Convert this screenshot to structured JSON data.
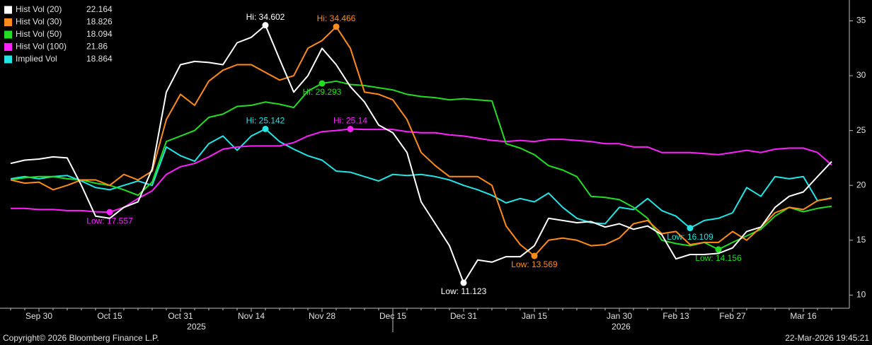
{
  "chart_data": {
    "type": "line",
    "legend": "top-left",
    "ylim": [
      8.8,
      36.9
    ],
    "yticks": [
      10,
      15,
      20,
      25,
      30,
      35
    ],
    "categories": [
      null,
      null,
      "Sep 30",
      null,
      null,
      null,
      null,
      "Oct 15",
      null,
      null,
      null,
      null,
      "Oct 31",
      null,
      null,
      null,
      null,
      "Nov 14",
      null,
      null,
      null,
      null,
      "Nov 28",
      null,
      null,
      null,
      null,
      "Dec 15",
      null,
      null,
      null,
      null,
      "Dec 31",
      null,
      null,
      null,
      null,
      "Jan 15",
      null,
      null,
      null,
      null,
      null,
      "Jan 30",
      null,
      null,
      null,
      "Feb 13",
      null,
      null,
      null,
      "Feb 27",
      null,
      null,
      null,
      null,
      "Mar 16",
      null,
      null
    ],
    "years": [
      "2025",
      "2026"
    ],
    "series": [
      {
        "name": "Hist Vol (20)",
        "color": "#ffffff",
        "values": [
          22.0,
          22.3,
          22.4,
          22.6,
          22.5,
          20.0,
          17.2,
          17.0,
          18.0,
          18.5,
          21.5,
          28.5,
          31.0,
          31.3,
          31.2,
          31.0,
          33.0,
          33.5,
          34.602,
          31.5,
          28.5,
          30.0,
          32.5,
          31.0,
          29.0,
          27.6,
          25.5,
          24.8,
          23.0,
          18.5,
          16.5,
          14.5,
          11.123,
          13.2,
          13.0,
          13.5,
          13.5,
          14.5,
          17.0,
          16.8,
          16.6,
          16.7,
          16.2,
          16.5,
          16.0,
          16.3,
          15.5,
          13.3,
          13.7,
          13.7,
          13.8,
          14.3,
          15.8,
          16.2,
          18.0,
          19.0,
          19.4,
          20.8,
          22.164
        ],
        "value_labels": [
          null,
          null,
          null,
          null,
          null,
          null,
          null,
          null,
          null,
          null,
          null,
          null,
          null,
          null,
          null,
          null,
          null,
          null,
          "Hi: 34.602",
          null,
          null,
          null,
          null,
          null,
          null,
          null,
          null,
          null,
          null,
          null,
          null,
          null,
          "Low: 11.123",
          null,
          null,
          null,
          null,
          null,
          null,
          null,
          null,
          null,
          null,
          null,
          null,
          null,
          null,
          null,
          null,
          null,
          null,
          null,
          null,
          null,
          null,
          null,
          null,
          null,
          null
        ]
      },
      {
        "name": "Hist Vol (30)",
        "color": "#ff8c1a",
        "values": [
          20.5,
          20.2,
          20.3,
          19.6,
          20.0,
          20.5,
          20.5,
          20.0,
          21.0,
          20.5,
          21.3,
          26.0,
          28.3,
          27.3,
          29.5,
          30.5,
          31.0,
          31.0,
          30.3,
          29.6,
          30.0,
          32.5,
          33.2,
          34.466,
          32.5,
          28.5,
          28.3,
          27.8,
          26.0,
          23.0,
          21.8,
          20.8,
          20.8,
          20.8,
          20.0,
          16.3,
          14.6,
          13.569,
          15.0,
          15.2,
          15.0,
          14.5,
          14.6,
          15.2,
          16.5,
          16.8,
          15.6,
          15.8,
          14.6,
          14.8,
          14.8,
          15.8,
          15.0,
          16.2,
          17.5,
          18.0,
          17.8,
          18.6,
          18.826
        ],
        "value_labels": [
          null,
          null,
          null,
          null,
          null,
          null,
          null,
          null,
          null,
          null,
          null,
          null,
          null,
          null,
          null,
          null,
          null,
          null,
          null,
          null,
          null,
          null,
          null,
          "Hi: 34.466",
          null,
          null,
          null,
          null,
          null,
          null,
          null,
          null,
          null,
          null,
          null,
          null,
          null,
          "Low: 13.569",
          null,
          null,
          null,
          null,
          null,
          null,
          null,
          null,
          null,
          null,
          null,
          null,
          null,
          null,
          null,
          null,
          null,
          null,
          null,
          null,
          null
        ]
      },
      {
        "name": "Hist Vol (50)",
        "color": "#22dd22",
        "values": [
          20.5,
          20.7,
          20.8,
          20.8,
          20.6,
          20.5,
          20.2,
          20.0,
          19.6,
          19.1,
          20.3,
          24.0,
          24.5,
          25.0,
          26.2,
          26.5,
          27.2,
          27.3,
          27.6,
          27.4,
          27.1,
          28.6,
          29.293,
          29.5,
          29.2,
          29.1,
          28.9,
          28.7,
          28.3,
          28.1,
          28.0,
          27.8,
          27.9,
          27.8,
          27.7,
          23.8,
          23.4,
          22.8,
          21.8,
          21.4,
          20.8,
          19.0,
          18.9,
          18.7,
          18.0,
          17.0,
          15.0,
          14.7,
          14.5,
          14.8,
          14.156,
          14.8,
          15.4,
          16.0,
          17.2,
          18.0,
          17.6,
          17.9,
          18.094
        ],
        "value_labels": [
          null,
          null,
          null,
          null,
          null,
          null,
          null,
          null,
          null,
          null,
          null,
          null,
          null,
          null,
          null,
          null,
          null,
          null,
          null,
          null,
          null,
          null,
          "Hi: 29.293",
          null,
          null,
          null,
          null,
          null,
          null,
          null,
          null,
          null,
          null,
          null,
          null,
          null,
          null,
          null,
          null,
          null,
          null,
          null,
          null,
          null,
          null,
          null,
          null,
          null,
          null,
          null,
          "Low: 14.156",
          null,
          null,
          null,
          null,
          null,
          null,
          null,
          null
        ]
      },
      {
        "name": "Hist Vol (100)",
        "color": "#ff22ff",
        "values": [
          17.9,
          17.9,
          17.8,
          17.8,
          17.7,
          17.7,
          17.6,
          17.557,
          18.0,
          18.8,
          19.5,
          21.0,
          21.7,
          22.0,
          22.6,
          23.3,
          23.5,
          23.6,
          23.6,
          23.6,
          23.9,
          24.5,
          24.9,
          25.0,
          25.14,
          25.1,
          25.1,
          25.1,
          24.9,
          24.8,
          24.8,
          24.6,
          24.5,
          24.3,
          24.1,
          24.0,
          24.1,
          24.0,
          24.2,
          24.2,
          24.1,
          24.0,
          23.8,
          23.8,
          23.5,
          23.5,
          23.0,
          23.0,
          23.0,
          22.9,
          22.8,
          23.0,
          23.2,
          23.0,
          23.3,
          23.4,
          23.4,
          23.0,
          21.86
        ],
        "value_labels": [
          null,
          null,
          null,
          null,
          null,
          null,
          null,
          "Low: 17.557",
          null,
          null,
          null,
          null,
          null,
          null,
          null,
          null,
          null,
          null,
          null,
          null,
          null,
          null,
          null,
          null,
          "Hi: 25.14",
          null,
          null,
          null,
          null,
          null,
          null,
          null,
          null,
          null,
          null,
          null,
          null,
          null,
          null,
          null,
          null,
          null,
          null,
          null,
          null,
          null,
          null,
          null,
          null,
          null,
          null,
          null,
          null,
          null,
          null,
          null,
          null,
          null,
          null
        ]
      },
      {
        "name": "Implied Vol",
        "color": "#22e5e5",
        "values": [
          20.6,
          20.8,
          20.6,
          20.8,
          20.9,
          20.4,
          19.8,
          19.6,
          20.0,
          20.4,
          20.0,
          23.5,
          22.7,
          22.2,
          23.8,
          24.5,
          23.2,
          24.5,
          25.142,
          24.0,
          23.3,
          22.7,
          22.3,
          21.3,
          21.2,
          20.8,
          20.4,
          21.0,
          20.9,
          21.0,
          20.8,
          20.5,
          20.0,
          19.6,
          19.1,
          18.4,
          18.8,
          18.5,
          19.3,
          18.0,
          17.0,
          16.6,
          16.5,
          18.0,
          17.8,
          18.8,
          17.7,
          17.2,
          16.109,
          16.8,
          17.0,
          17.5,
          19.8,
          19.0,
          20.8,
          20.6,
          20.8,
          18.6,
          18.864
        ],
        "value_labels": [
          null,
          null,
          null,
          null,
          null,
          null,
          null,
          null,
          null,
          null,
          null,
          null,
          null,
          null,
          null,
          null,
          null,
          null,
          "Hi: 25.142",
          null,
          null,
          null,
          null,
          null,
          null,
          null,
          null,
          null,
          null,
          null,
          null,
          null,
          null,
          null,
          null,
          null,
          null,
          null,
          null,
          null,
          null,
          null,
          null,
          null,
          null,
          null,
          null,
          null,
          "Low: 16.109",
          null,
          null,
          null,
          null,
          null,
          null,
          null,
          null,
          null,
          null
        ]
      }
    ]
  },
  "footer": {
    "copyright": "Copyright© 2026 Bloomberg Finance L.P.",
    "timestamp": "22-Mar-2026 19:45:21"
  }
}
